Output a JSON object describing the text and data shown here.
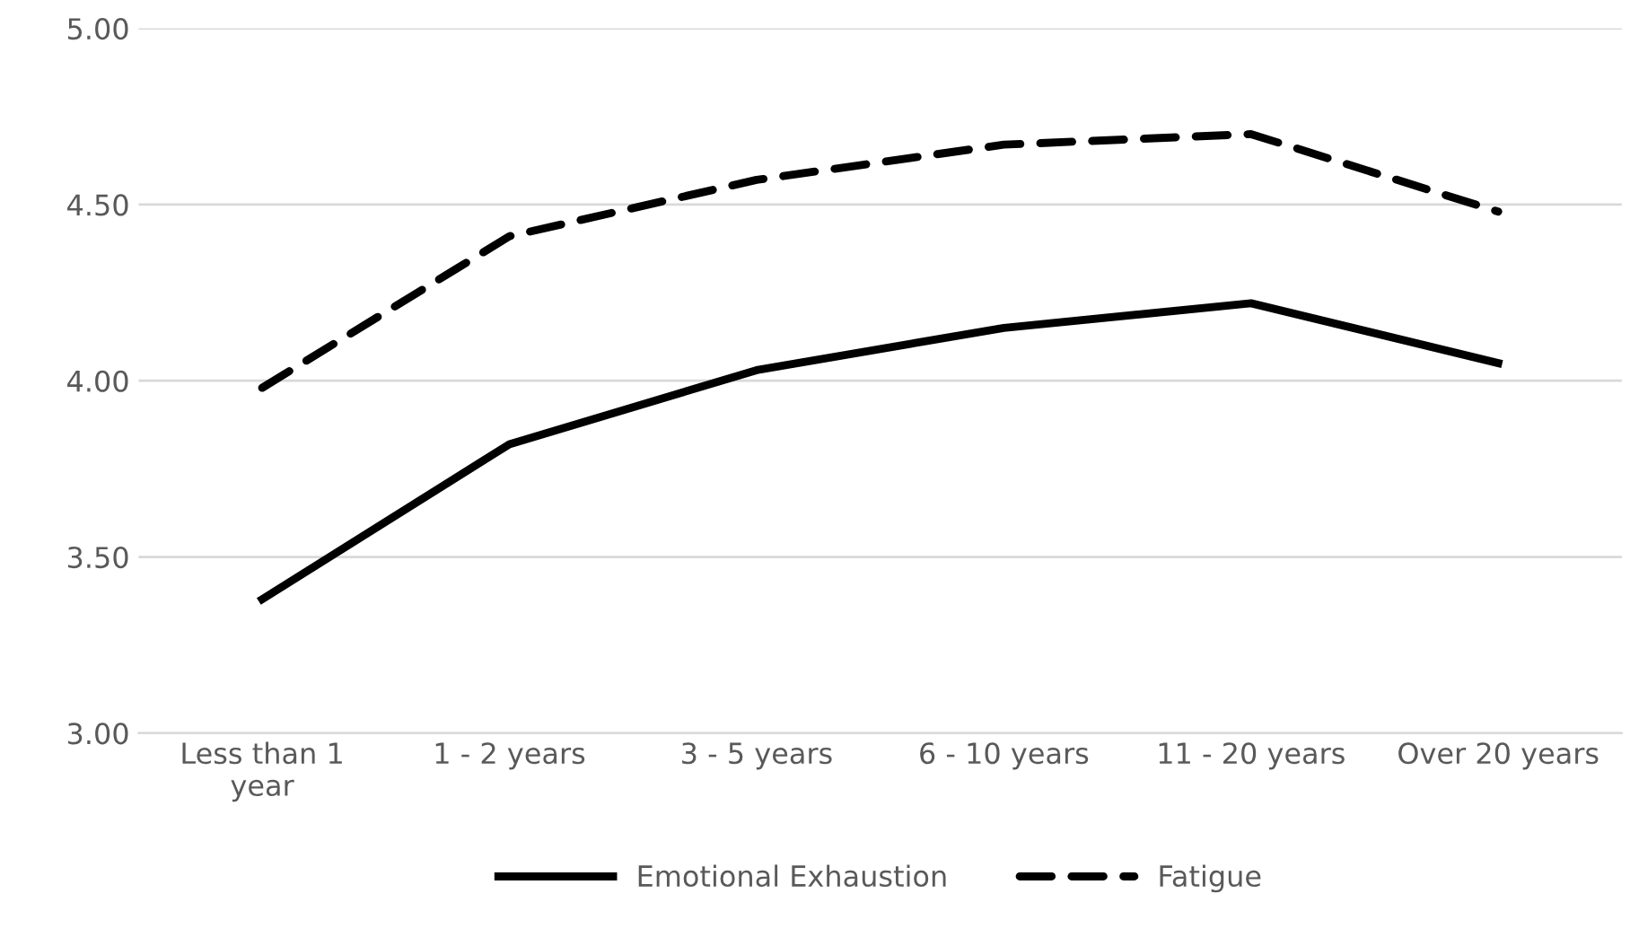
{
  "chart_data": {
    "type": "line",
    "categories": [
      "Less than 1\nyear",
      "1 - 2 years",
      "3 - 5 years",
      "6 - 10 years",
      "11 - 20 years",
      "Over 20 years"
    ],
    "series": [
      {
        "name": "Emotional Exhaustion",
        "color": "#000000",
        "line_style": "solid",
        "values": [
          3.38,
          3.82,
          4.03,
          4.15,
          4.22,
          4.05
        ]
      },
      {
        "name": "Fatigue",
        "color": "#000000",
        "line_style": "dashed",
        "values": [
          3.98,
          4.41,
          4.57,
          4.67,
          4.7,
          4.48
        ]
      }
    ],
    "ylim": [
      3.0,
      5.0
    ],
    "yticks": [
      {
        "value": 3.0,
        "label": "3.00"
      },
      {
        "value": 3.5,
        "label": "3.50"
      },
      {
        "value": 4.0,
        "label": "4.00"
      },
      {
        "value": 4.5,
        "label": "4.50"
      },
      {
        "value": 5.0,
        "label": "5.00"
      }
    ],
    "grid": "y",
    "legend": "bottom",
    "marker": "none"
  }
}
